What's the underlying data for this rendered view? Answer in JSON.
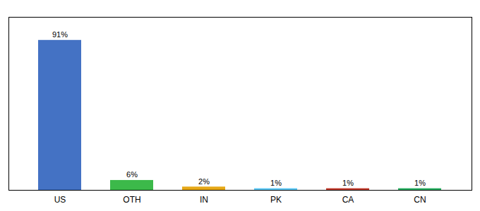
{
  "chart_data": {
    "type": "bar",
    "categories": [
      "US",
      "OTH",
      "IN",
      "PK",
      "CA",
      "CN"
    ],
    "values": [
      91,
      6,
      2,
      1,
      1,
      1
    ],
    "value_labels": [
      "91%",
      "6%",
      "2%",
      "1%",
      "1%",
      "1%"
    ],
    "colors": [
      "#4472c4",
      "#3cb94a",
      "#e6a817",
      "#5bc8f5",
      "#c0392b",
      "#27ae60"
    ],
    "ylim": [
      0,
      105
    ],
    "data_labels": true,
    "tick_labels": "x",
    "grid": false
  }
}
